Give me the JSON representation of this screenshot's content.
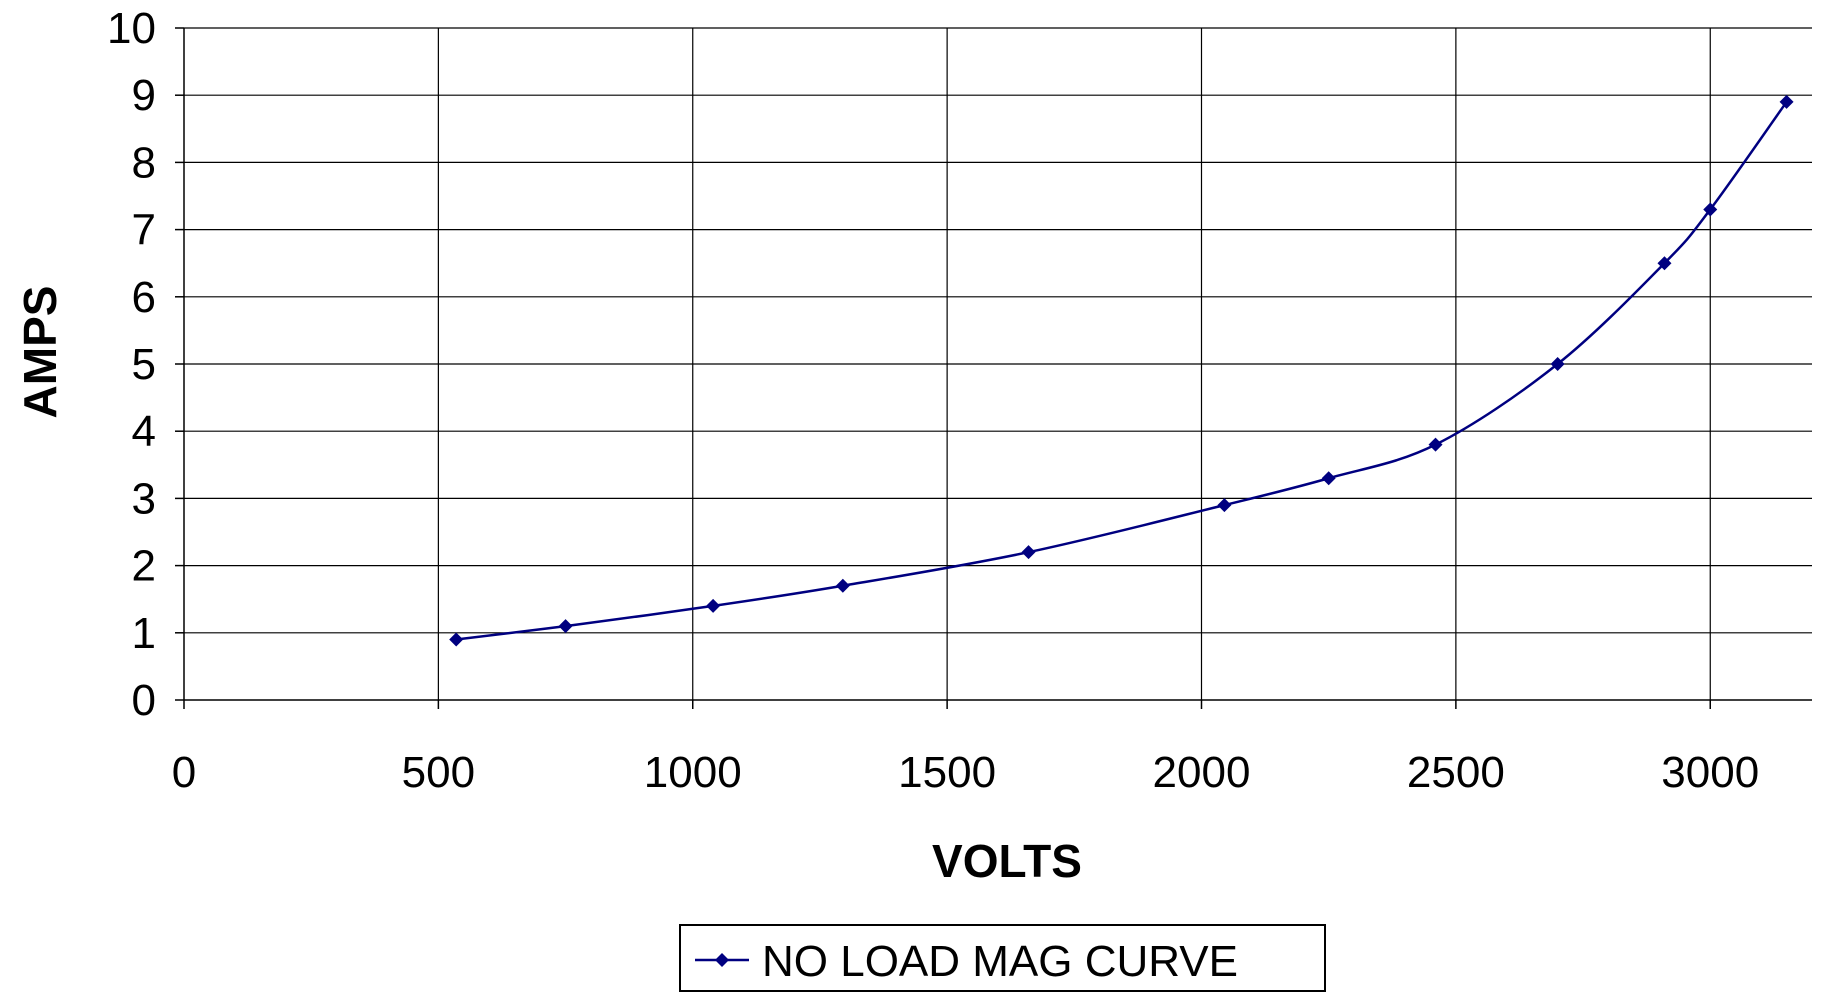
{
  "chart_data": {
    "type": "line",
    "title": "",
    "xlabel": "VOLTS",
    "ylabel": "AMPS",
    "xlim": [
      0,
      3200
    ],
    "ylim": [
      0,
      10
    ],
    "xticks": [
      0,
      500,
      1000,
      1500,
      2000,
      2500,
      3000
    ],
    "yticks": [
      0,
      1,
      2,
      3,
      4,
      5,
      6,
      7,
      8,
      9,
      10
    ],
    "grid": true,
    "legend_position": "bottom-center",
    "series": [
      {
        "name": "NO LOAD MAG CURVE",
        "color": "#000080",
        "marker": "diamond",
        "smooth": true,
        "x": [
          535,
          750,
          1040,
          1295,
          1660,
          2045,
          2250,
          2460,
          2700,
          2910,
          3000,
          3150
        ],
        "y": [
          0.9,
          1.1,
          1.4,
          1.7,
          2.2,
          2.9,
          3.3,
          3.8,
          5.0,
          6.5,
          7.3,
          8.9
        ]
      }
    ]
  }
}
